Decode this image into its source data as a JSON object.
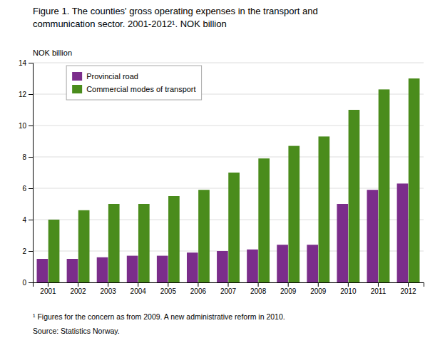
{
  "chart_data": {
    "type": "bar",
    "title": [
      "Figure 1. The counties' gross operating expenses in the transport and",
      "communication sector. 2001-2012¹. NOK billion"
    ],
    "ylabel": "NOK billion",
    "categories": [
      "2001",
      "2002",
      "2003",
      "2004",
      "2005",
      "2006",
      "2007",
      "2008",
      "2009",
      "2009",
      "2010",
      "2011",
      "2012"
    ],
    "series": [
      {
        "name": "Provincial road",
        "color": "#7B2D8B",
        "values": [
          1.5,
          1.5,
          1.6,
          1.7,
          1.7,
          1.9,
          2.0,
          2.1,
          2.4,
          2.4,
          5.0,
          5.9,
          6.3
        ]
      },
      {
        "name": "Commercial modes of transport",
        "color": "#4A8C1C",
        "values": [
          4.0,
          4.6,
          5.0,
          5.0,
          5.5,
          5.9,
          7.0,
          7.9,
          8.7,
          9.3,
          11.0,
          12.3,
          13.0
        ]
      }
    ],
    "ylim": [
      0,
      14
    ],
    "yticks": [
      0,
      2,
      4,
      6,
      8,
      10,
      12,
      14
    ],
    "grid": true,
    "legend": "top-left",
    "annotations": [
      "¹ Figures for the concern as from 2009.  A new administrative reform in 2010.",
      "Source: Statistics Norway."
    ]
  }
}
